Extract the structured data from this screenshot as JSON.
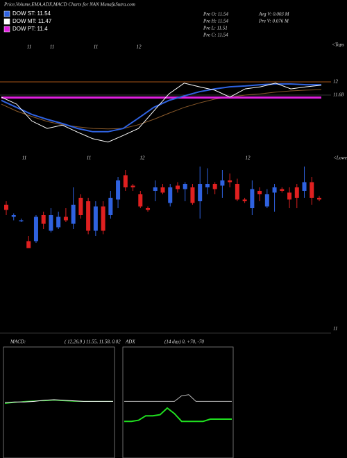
{
  "chart_data": [
    {
      "type": "line",
      "title": "Price,Volume,EMA,ADX,MACD Charts for NAN  MunafaSutra.com",
      "legend_items": [
        {
          "label": "DOW ST: 11.54",
          "color": "#2f62e0"
        },
        {
          "label": "DOW MT: 11.47",
          "color": "#ffffff"
        },
        {
          "label": "DOW PT: 11.4",
          "color": "#e020e0"
        }
      ],
      "annotations": [
        "Pre  O: 11.54",
        "Pre  H: 11.54",
        "Pre  L: 11.51",
        "Pre  C: 11.54",
        "Avg V: 0.003 M",
        "Pre  V: 0.076  M",
        "<Tops"
      ],
      "x_labels": [
        "11",
        "11",
        "11",
        "12"
      ],
      "ylim": [
        10.4,
        13
      ],
      "yticks": [
        12,
        11.68
      ],
      "series": [
        {
          "color": "#8a5a2a",
          "values": [
            11.46,
            11.29,
            11.16,
            11.04,
            10.96,
            10.91,
            10.87,
            10.86,
            10.87,
            10.96,
            11.09,
            11.24,
            11.38,
            11.49,
            11.58,
            11.63,
            11.68,
            11.71,
            11.75,
            11.78,
            11.8,
            11.81
          ]
        },
        {
          "color": "#e020e0",
          "width": 3,
          "values": [
            11.62,
            11.62,
            11.62,
            11.62,
            11.62,
            11.62,
            11.62,
            11.62,
            11.62,
            11.62,
            11.62,
            11.62,
            11.62,
            11.62,
            11.62,
            11.62,
            11.62,
            11.62,
            11.62,
            11.62,
            11.62,
            11.62
          ]
        },
        {
          "color": "#2f62e0",
          "width": 2,
          "values": [
            11.55,
            11.38,
            11.21,
            11.09,
            10.99,
            10.87,
            10.79,
            10.79,
            10.87,
            11.12,
            11.38,
            11.55,
            11.66,
            11.76,
            11.83,
            11.88,
            11.9,
            11.93,
            11.95,
            11.95,
            11.93,
            11.93
          ]
        },
        {
          "color": "#ffffff",
          "values": [
            11.63,
            11.46,
            11.05,
            10.87,
            10.95,
            10.78,
            10.62,
            10.54,
            10.7,
            10.87,
            11.29,
            11.71,
            11.97,
            11.88,
            11.8,
            11.63,
            11.83,
            11.88,
            11.97,
            11.83,
            11.88,
            11.92
          ]
        }
      ]
    },
    {
      "type": "candlestick",
      "x_labels": [
        "11",
        "11",
        "12",
        "12"
      ],
      "annotations": [
        "<Lowes"
      ],
      "ylim": [
        11,
        12
      ],
      "yticks": [
        11
      ],
      "open": [
        11.74,
        11.67,
        11.65,
        11.53,
        11.53,
        11.68,
        11.59,
        11.61,
        11.67,
        11.63,
        11.78,
        11.76,
        11.59,
        11.73,
        11.68,
        11.77,
        11.91,
        11.85,
        11.8,
        11.72,
        11.82,
        11.84,
        11.75,
        11.85,
        11.83,
        11.84,
        11.76,
        11.84,
        11.86,
        11.85,
        11.88,
        11.86,
        11.77,
        11.72,
        11.82,
        11.73,
        11.81,
        11.83,
        11.81,
        11.84,
        11.82,
        11.87,
        11.78
      ],
      "high": [
        11.76,
        11.69,
        11.66,
        11.56,
        11.68,
        11.7,
        11.72,
        11.7,
        11.72,
        11.84,
        11.8,
        11.78,
        11.76,
        11.76,
        11.82,
        11.9,
        11.94,
        11.86,
        11.82,
        11.73,
        11.88,
        11.86,
        11.86,
        11.87,
        11.87,
        11.86,
        11.96,
        11.95,
        11.87,
        11.94,
        11.92,
        11.89,
        11.78,
        11.88,
        11.84,
        11.83,
        11.86,
        11.84,
        11.84,
        11.86,
        11.96,
        11.9,
        11.79
      ],
      "low": [
        11.68,
        11.65,
        11.64,
        11.49,
        11.52,
        11.6,
        11.58,
        11.6,
        11.64,
        11.6,
        11.66,
        11.57,
        11.56,
        11.57,
        11.66,
        11.72,
        11.82,
        11.82,
        11.72,
        11.7,
        11.76,
        11.8,
        11.73,
        11.81,
        11.76,
        11.74,
        11.66,
        11.8,
        11.8,
        11.78,
        11.84,
        11.76,
        11.75,
        11.68,
        11.76,
        11.72,
        11.7,
        11.81,
        11.72,
        11.72,
        11.78,
        11.74,
        11.76
      ],
      "close": [
        11.71,
        11.68,
        11.65,
        11.49,
        11.67,
        11.63,
        11.68,
        11.67,
        11.65,
        11.74,
        11.68,
        11.59,
        11.73,
        11.59,
        11.78,
        11.88,
        11.84,
        11.84,
        11.73,
        11.71,
        11.84,
        11.81,
        11.84,
        11.83,
        11.86,
        11.75,
        11.86,
        11.86,
        11.83,
        11.88,
        11.87,
        11.77,
        11.76,
        11.83,
        11.8,
        11.8,
        11.84,
        11.82,
        11.77,
        11.78,
        11.87,
        11.78,
        11.77
      ]
    },
    {
      "type": "line",
      "title": "MACD:",
      "subtitle": "( 12,26,9 ) 11.55, 11.58, 0.02",
      "ylim": [
        -1,
        1
      ],
      "series": [
        {
          "color": "#20d020",
          "values": [
            -0.02,
            0,
            0.02,
            0.03,
            0.03,
            0.04,
            0.03,
            0.02,
            0.02,
            0.02,
            0.02,
            0.02
          ]
        },
        {
          "color": "#ffffff",
          "values": [
            0,
            0.01,
            0.01,
            0.02,
            0.04,
            0.05,
            0.04,
            0.03,
            0.02,
            0.02,
            0.02,
            0.02
          ]
        }
      ]
    },
    {
      "type": "line",
      "title": "ADX",
      "subtitle": "(14  day) 0, +70, -70",
      "ylim": [
        0,
        100
      ],
      "series": [
        {
          "color": "#bbbbbb",
          "values": [
            51,
            51,
            51,
            51,
            51,
            51,
            51,
            51,
            56,
            57,
            51,
            51,
            51,
            51,
            51,
            51
          ]
        },
        {
          "color": "#20e020",
          "width": 2,
          "values": [
            33,
            33,
            34,
            38,
            38,
            39,
            45,
            40,
            33,
            33,
            33,
            33,
            35,
            35,
            35,
            35
          ]
        }
      ]
    }
  ]
}
